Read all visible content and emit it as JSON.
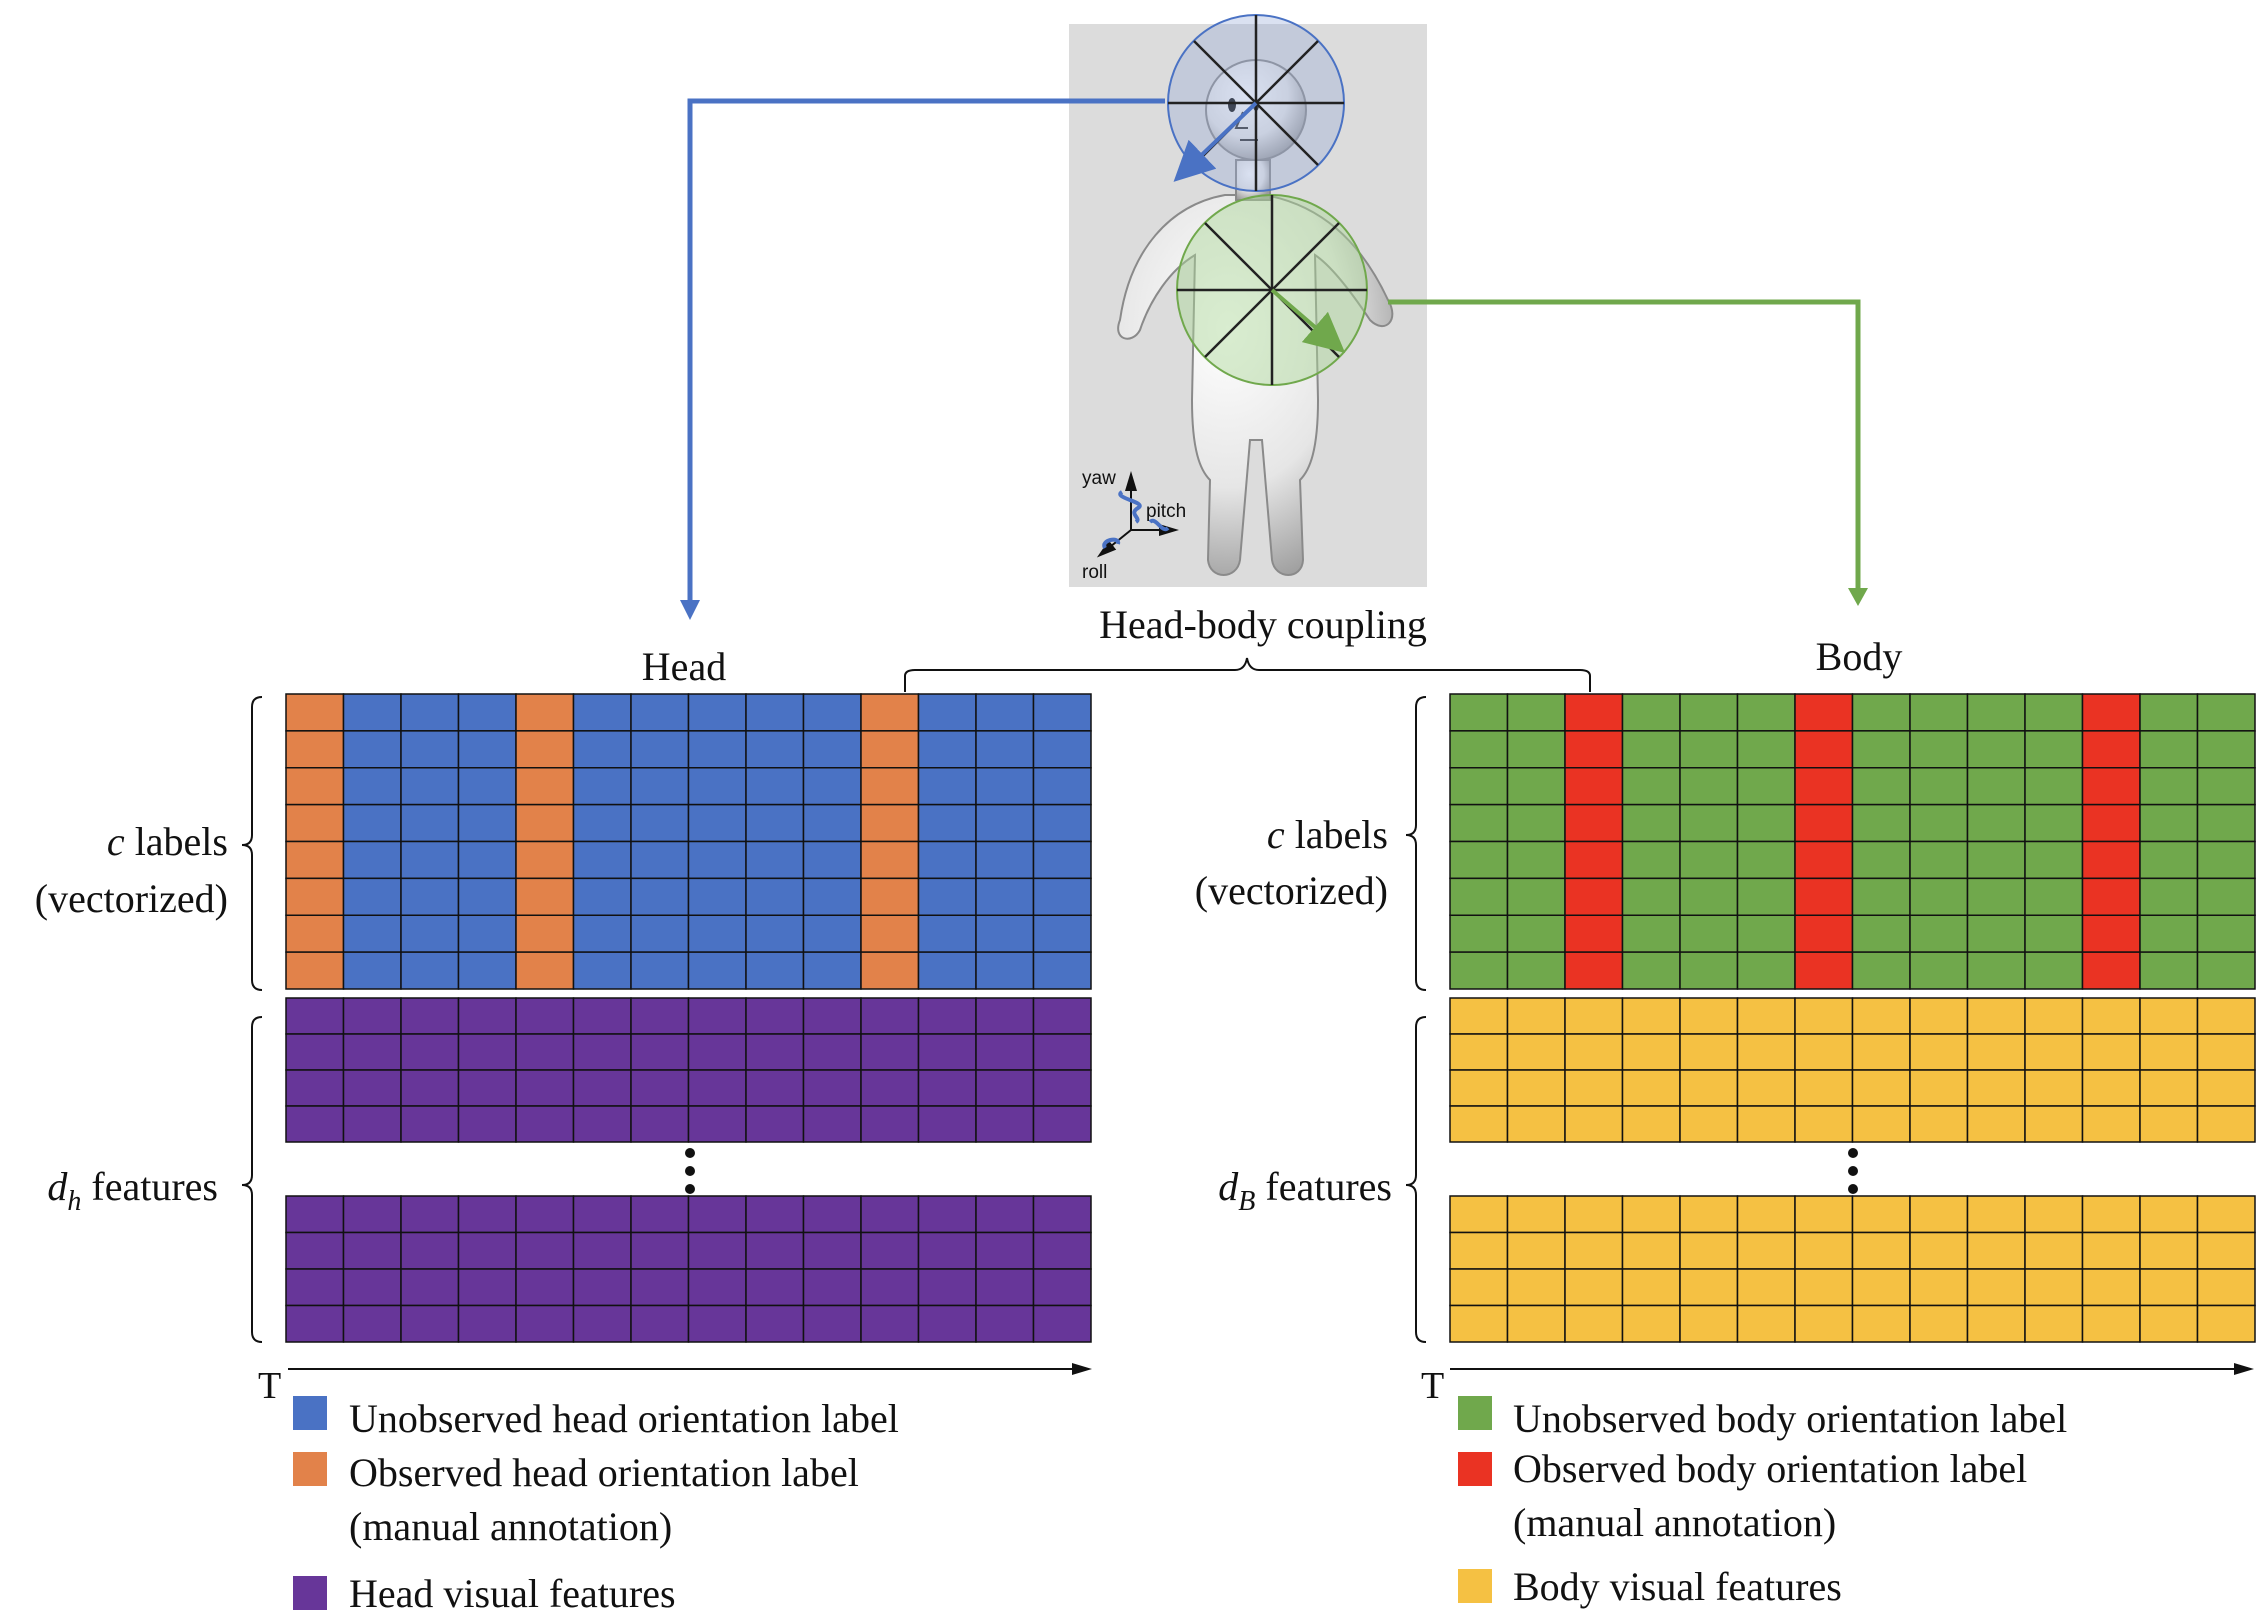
{
  "figure": {
    "head_title": "Head",
    "body_title": "Body",
    "coupling_label": "Head-body coupling",
    "time_label": "T",
    "head": {
      "labels_text_italic": "c",
      "labels_text": " labels",
      "labels_text2": "(vectorized)",
      "features_var": "d",
      "features_sub": "h",
      "features_text": " features",
      "label_columns": [
        "O",
        "U",
        "U",
        "U",
        "O",
        "U",
        "U",
        "U",
        "U",
        "U",
        "O",
        "U",
        "U",
        "U"
      ],
      "label_rows": 8,
      "feature_rows_top": 4,
      "feature_rows_bottom": 4,
      "columns": 14
    },
    "body": {
      "labels_text_italic": "c",
      "labels_text": " labels",
      "labels_text2": "(vectorized)",
      "features_var": "d",
      "features_sub": "B",
      "features_text": " features",
      "label_columns": [
        "U",
        "U",
        "O",
        "U",
        "U",
        "U",
        "O",
        "U",
        "U",
        "U",
        "U",
        "O",
        "U",
        "U"
      ],
      "label_rows": 8,
      "feature_rows_top": 4,
      "feature_rows_bottom": 4,
      "columns": 14
    },
    "axes_legend": {
      "yaw": "yaw",
      "pitch": "pitch",
      "roll": "roll"
    }
  },
  "legend": {
    "head": [
      {
        "text": "Unobserved head orientation label",
        "color": "#4a72c4"
      },
      {
        "text": "Observed head orientation label",
        "text2": "(manual annotation)",
        "color": "#e2824a"
      },
      {
        "text": "Head visual features",
        "color": "#673699"
      }
    ],
    "body": [
      {
        "text": "Unobserved body orientation label",
        "color": "#70a84c"
      },
      {
        "text": "Observed body orientation label",
        "text2": "(manual annotation)",
        "color": "#ea3323"
      },
      {
        "text": "Body visual features",
        "color": "#f5c143"
      }
    ]
  },
  "colors": {
    "head_unobserved": "#4a72c4",
    "head_observed": "#e2824a",
    "head_features": "#673699",
    "body_unobserved": "#70a84c",
    "body_observed": "#ea3323",
    "body_features": "#f5c143",
    "head_arrow": "#4a72c4",
    "body_arrow": "#70a84c",
    "panel_bg": "#dcdcdc"
  }
}
